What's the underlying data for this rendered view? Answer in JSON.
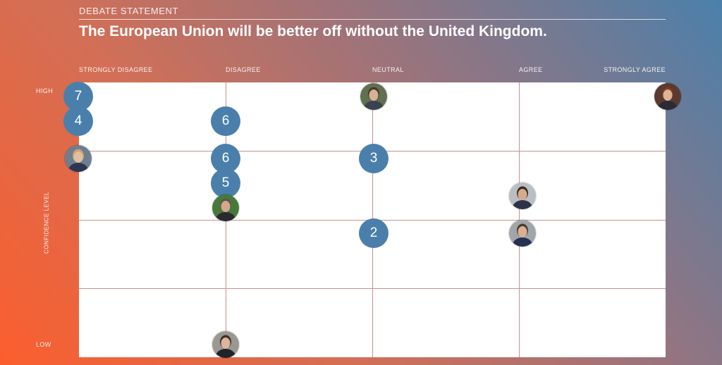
{
  "header": {
    "kicker": "DEBATE STATEMENT",
    "title": "The European Union will be better off without the United Kingdom."
  },
  "axes": {
    "x_labels": [
      "STRONGLY DISAGREE",
      "DISAGREE",
      "NEUTRAL",
      "AGREE",
      "STRONGLY AGREE"
    ],
    "y_high": "HIGH",
    "y_low": "LOW",
    "y_axis_label": "CONFIDENCE LEVEL"
  },
  "chart_data": {
    "type": "scatter",
    "x_categories": [
      "STRONGLY DISAGREE",
      "DISAGREE",
      "NEUTRAL",
      "AGREE",
      "STRONGLY AGREE"
    ],
    "y_label": "CONFIDENCE LEVEL",
    "y_range_labels": [
      "LOW",
      "HIGH"
    ],
    "ylim": [
      0,
      1
    ],
    "grid": true,
    "points": [
      {
        "kind": "count",
        "label": "7",
        "x": 0,
        "y": 1.0
      },
      {
        "kind": "count",
        "label": "4",
        "x": 0,
        "y": 0.9
      },
      {
        "kind": "avatar",
        "x": 0,
        "y": 0.75,
        "skin": "#e2bfa2",
        "hair": "#c9a373",
        "shirt": "#2c3650",
        "bg": "#6d7f8f"
      },
      {
        "kind": "count",
        "label": "6",
        "x": 1,
        "y": 0.9
      },
      {
        "kind": "count",
        "label": "6",
        "x": 1,
        "y": 0.75
      },
      {
        "kind": "count",
        "label": "5",
        "x": 1,
        "y": 0.65
      },
      {
        "kind": "avatar",
        "x": 1,
        "y": 0.55,
        "skin": "#d2a88d",
        "hair": "#5e564e",
        "shirt": "#2a2a30",
        "bg": "#477a3a"
      },
      {
        "kind": "avatar",
        "x": 1,
        "y": 0.0,
        "skin": "#dcb59c",
        "hair": "#3d2f26",
        "shirt": "#20232a",
        "bg": "#9a9890"
      },
      {
        "kind": "avatar",
        "x": 2,
        "y": 1.0,
        "skin": "#d7b196",
        "hair": "#4a3a2d",
        "shirt": "#3c4150",
        "bg": "#607050"
      },
      {
        "kind": "count",
        "label": "3",
        "x": 2,
        "y": 0.75
      },
      {
        "kind": "count",
        "label": "2",
        "x": 2,
        "y": 0.45
      },
      {
        "kind": "avatar",
        "x": 3,
        "y": 0.6,
        "skin": "#d6aa8c",
        "hair": "#3b2c22",
        "shirt": "#2b3447",
        "bg": "#b9bec3"
      },
      {
        "kind": "avatar",
        "x": 3,
        "y": 0.45,
        "skin": "#d9b095",
        "hair": "#4a3a2c",
        "shirt": "#243150",
        "bg": "#a0a6aa"
      },
      {
        "kind": "avatar",
        "x": 4,
        "y": 1.0,
        "skin": "#e0b394",
        "hair": "#7a3f23",
        "shirt": "#2a2b35",
        "bg": "#5a3a30"
      }
    ]
  }
}
